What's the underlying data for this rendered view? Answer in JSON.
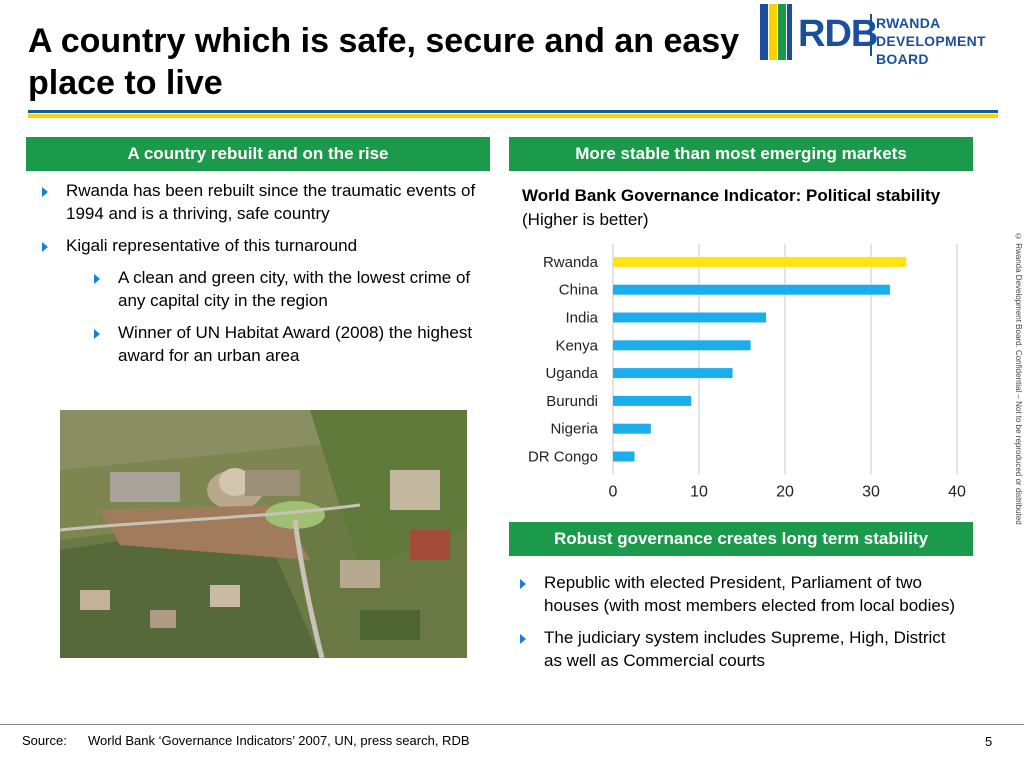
{
  "title": "A country which is safe, secure and an easy place to live",
  "logo": {
    "abbr": "RDB",
    "line1": "RWANDA",
    "line2": "DEVELOPMENT BOARD",
    "stripe_colors": [
      "#1b4f9c",
      "#ffd000",
      "#1a9a4a"
    ]
  },
  "left_panel": {
    "header": "A country rebuilt and on the rise",
    "bullets": [
      {
        "text": "Rwanda has been rebuilt since the traumatic events of 1994 and is a thriving, safe country"
      },
      {
        "text": "Kigali representative of this turnaround"
      }
    ],
    "sub_bullets": [
      {
        "text": "A clean and green city, with the lowest crime of any capital city in the region"
      },
      {
        "text": "Winner of UN Habitat Award (2008) the highest award for an urban area"
      }
    ],
    "photo_icon": "aerial-city-photo"
  },
  "right_panel": {
    "header": "More stable than most emerging markets",
    "chart_title_bold": "World Bank Governance Indicator: Political stability",
    "chart_title_rest": " (Higher is better)",
    "lower_header": "Robust governance creates long term stability",
    "lower_bullets": [
      {
        "text": "Republic with elected President, Parliament of two houses (with most members elected from local bodies)"
      },
      {
        "text": "The judiciary system includes Supreme, High, District as well as Commercial courts"
      }
    ]
  },
  "chart_data": {
    "type": "bar",
    "orientation": "horizontal",
    "categories": [
      "Rwanda",
      "China",
      "India",
      "Kenya",
      "Uganda",
      "Burundi",
      "Nigeria",
      "DR Congo"
    ],
    "values": [
      34.1,
      32.2,
      17.8,
      16.0,
      13.9,
      9.1,
      4.4,
      2.5
    ],
    "highlight": "Rwanda",
    "bar_color": "#1cadec",
    "highlight_color": "#ffe40f",
    "xlim": [
      0,
      40
    ],
    "xticks": [
      0,
      10,
      20,
      30,
      40
    ],
    "grid": "vertical"
  },
  "side_note": "© Rwanda Development Board. Confidential – Not to be reproduced or distributed",
  "footer": {
    "source_label": "Source:",
    "source_text": "World Bank ‘Governance Indicators’ 2007, UN, press search, RDB",
    "page_number": "5"
  },
  "colors": {
    "green": "#1a9a4a",
    "blue": "#0f5ba8",
    "yellow": "#ffd000",
    "bullet": "#1a7fd4"
  }
}
